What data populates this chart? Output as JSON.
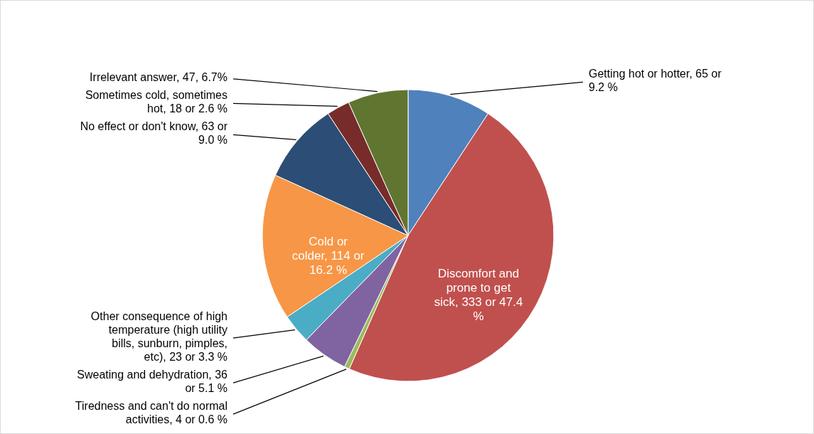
{
  "chart_data": {
    "type": "pie",
    "categories": [
      "Getting hot or hotter",
      "Discomfort and prone to get sick",
      "Tiredness and can't do normal activities",
      "Sweating and dehydration",
      "Other consequence of high temperature (high utility bills, sunburn, pimples, etc)",
      "Cold or colder",
      "No effect or don't know",
      "Sometimes cold, sometimes hot",
      "Irrelevant answer"
    ],
    "values": [
      65,
      333,
      4,
      36,
      23,
      114,
      63,
      18,
      47
    ],
    "colors": [
      "#4f81bd",
      "#c0504d",
      "#9bbb59",
      "#8064a2",
      "#4bacc6",
      "#f79646",
      "#2c4d75",
      "#772c2a",
      "#5f7530"
    ],
    "value_labels": [
      "65 or 9.2 %",
      "333 or 47.4 %",
      "4 or 0.6 %",
      "36 or 5.1 %",
      "23 or 3.3 %",
      "114 or 16.2 %",
      "63 or 9.0 %",
      "18 or 2.6 %",
      "47, 6.7%"
    ]
  }
}
